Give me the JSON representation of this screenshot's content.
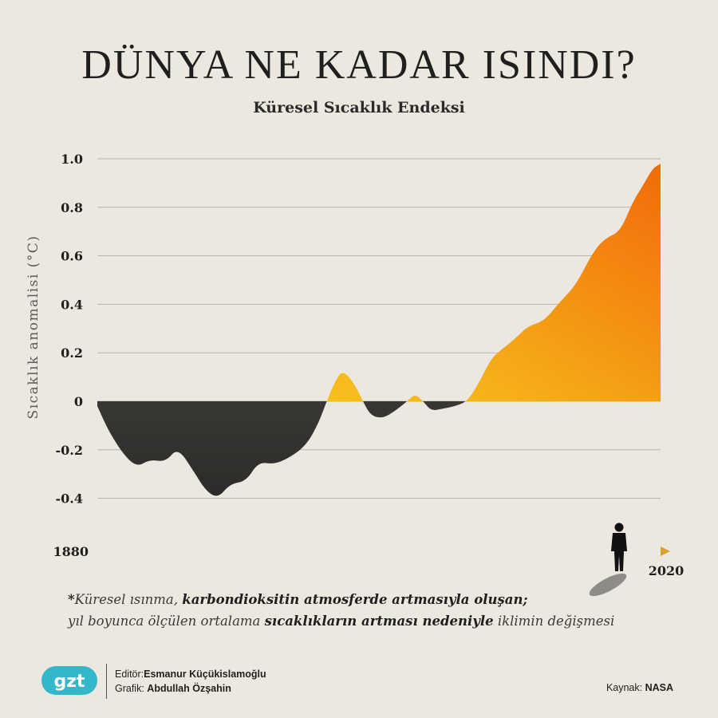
{
  "header": {
    "title": "DÜNYA NE KADAR ISINDI?",
    "subtitle": "Küresel Sıcaklık Endeksi"
  },
  "chart_data": {
    "type": "area",
    "title": "DÜNYA NE KADAR ISINDI?",
    "subtitle": "Küresel Sıcaklık Endeksi",
    "ylabel": "Sıcaklık anomalisi (°C)",
    "xlabel": "",
    "x_start_label": "1880",
    "x_end_label": "2020",
    "ylim": [
      -0.45,
      1.05
    ],
    "yticks": [
      1.0,
      0.8,
      0.6,
      0.4,
      0.2,
      0,
      -0.2,
      -0.4
    ],
    "ytick_labels": [
      "1.0",
      "0.8",
      "0.6",
      "0.4",
      "0.2",
      "0",
      "-0.2",
      "-0.4"
    ],
    "grid": true,
    "x": [
      1880,
      1883,
      1887,
      1890,
      1893,
      1897,
      1900,
      1904,
      1907,
      1910,
      1913,
      1917,
      1920,
      1924,
      1928,
      1932,
      1935,
      1937,
      1939,
      1941,
      1944,
      1946,
      1948,
      1951,
      1954,
      1957,
      1959,
      1961,
      1963,
      1966,
      1969,
      1972,
      1975,
      1978,
      1981,
      1984,
      1987,
      1991,
      1995,
      1999,
      2003,
      2006,
      2010,
      2013,
      2016,
      2018,
      2020
    ],
    "values": [
      -0.02,
      -0.13,
      -0.23,
      -0.27,
      -0.24,
      -0.25,
      -0.19,
      -0.29,
      -0.37,
      -0.4,
      -0.34,
      -0.33,
      -0.25,
      -0.26,
      -0.23,
      -0.18,
      -0.09,
      0.0,
      0.08,
      0.13,
      0.07,
      0.0,
      -0.06,
      -0.07,
      -0.04,
      0.0,
      0.03,
      0.0,
      -0.04,
      -0.03,
      -0.02,
      0.0,
      0.08,
      0.18,
      0.22,
      0.26,
      0.31,
      0.33,
      0.41,
      0.48,
      0.61,
      0.67,
      0.7,
      0.82,
      0.9,
      0.96,
      0.98
    ],
    "colors": {
      "negative": "#6e6c69",
      "positive_low": "#f6d224",
      "positive_high": "#f26f0c",
      "axis_arrow": "#d9a12b"
    }
  },
  "note": {
    "star": "*",
    "part1": "Küresel ısınma, ",
    "bold1": "karbondioksitin atmosferde artmasıyla oluşan;",
    "part2": "yıl boyunca ölçülen ortalama ",
    "bold2": "sıcaklıkların artması nedeniyle",
    "part3": " iklimin değişmesi"
  },
  "credits": {
    "editor_label": "Editör:",
    "editor_name": "Esmanur Küçükislamoğlu",
    "graphic_label": "Grafik: ",
    "graphic_name": "Abdullah Özşahin",
    "source_label": "Kaynak: ",
    "source_name": "NASA"
  },
  "logo": {
    "text": "gzt",
    "color": "#34b8c9"
  },
  "icons": {
    "person": "person-silhouette-icon"
  }
}
